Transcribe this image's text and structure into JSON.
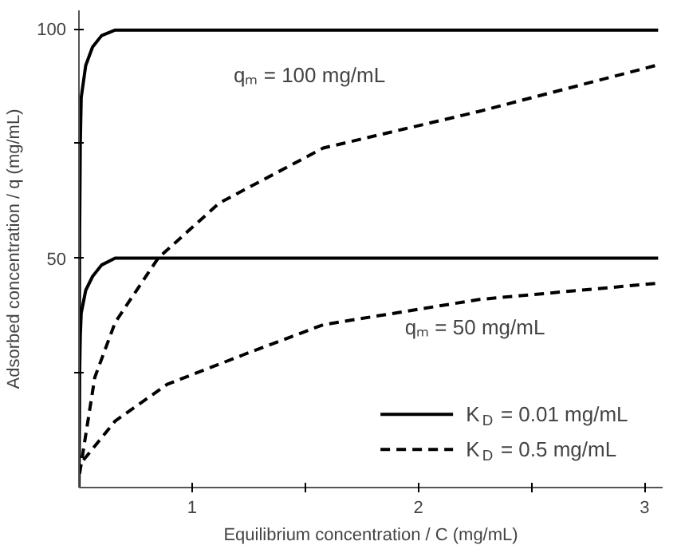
{
  "chart_data": {
    "type": "line",
    "xlabel": "Equilibrium concentration / C (mg/mL)",
    "ylabel": "Adsorbed concentration / q (mg/mL)",
    "xlim": [
      0.5,
      3.08
    ],
    "ylim": [
      0,
      104
    ],
    "xticks": [
      1,
      {
        "value": 1.5,
        "label": null
      },
      2,
      {
        "value": 2.5,
        "label": null
      },
      3
    ],
    "yticks": [
      {
        "value": 25,
        "label": null
      },
      50,
      {
        "value": 75,
        "label": null
      },
      100
    ],
    "grid": false,
    "legend": "bottom right",
    "marker": "none",
    "series": [
      {
        "name": "K$_{D}$ = 0.01 mg/mL",
        "color": "#000000",
        "line_style": "solid",
        "x": [
          0.5,
          0.503,
          0.506,
          0.51,
          0.53,
          0.56,
          0.6,
          0.66,
          3.06
        ],
        "values": [
          0,
          55,
          75,
          85,
          92,
          96,
          98.5,
          99.7,
          99.7
        ]
      },
      {
        "color": "#000000",
        "line_style": "solid",
        "x": [
          0.5,
          0.503,
          0.506,
          0.51,
          0.53,
          0.56,
          0.6,
          0.66,
          3.06
        ],
        "values": [
          0,
          25,
          33,
          38,
          43,
          46,
          48.5,
          50,
          50
        ]
      },
      {
        "name": "K$_{D}$ = 0.5 mg/mL",
        "color": "#000000",
        "line_style": "dashed",
        "x": [
          0.503,
          0.57,
          0.66,
          0.85,
          1.12,
          1.58,
          2.27,
          3.05
        ],
        "values": [
          3,
          24,
          36,
          50,
          62,
          74,
          82,
          92
        ]
      },
      {
        "color": "#000000",
        "line_style": "dashed",
        "x": [
          0.52,
          0.66,
          0.89,
          1.23,
          1.58,
          2.27,
          3.05
        ],
        "values": [
          6,
          14.5,
          22.5,
          29,
          35.5,
          41,
          44.5
        ]
      }
    ],
    "annotations": [
      "qₘ = 100 mg/mL",
      "qₘ = 50 mg/mL"
    ]
  }
}
